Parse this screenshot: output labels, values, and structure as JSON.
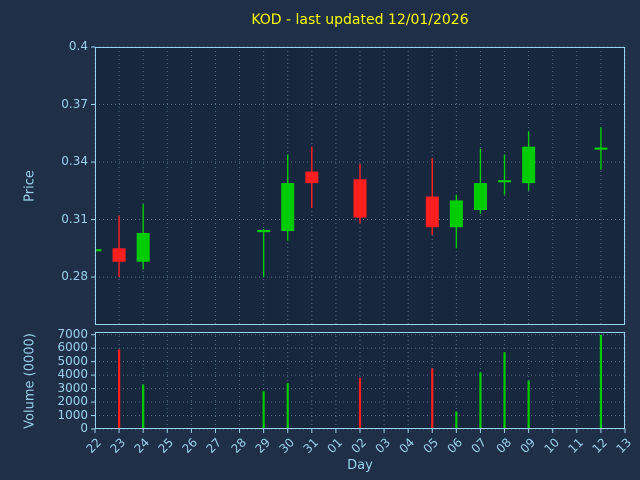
{
  "colors": {
    "figure_bg": "#1e2f47",
    "axes_bg": "#16273e",
    "text": "#9bd1ec",
    "title": "#ffff00",
    "grid": "#54708c",
    "spine": "#9bd1ec",
    "up": "#00cc00",
    "down": "#ff1f1f"
  },
  "chart_data": {
    "type": "candlestick",
    "title": "KOD - last updated 12/01/2026",
    "symbol": "KOD",
    "updated_date": "12/01/2026",
    "xlabel": "Day",
    "grid": "dotted",
    "x_ticklabels": [
      "22",
      "23",
      "24",
      "25",
      "26",
      "27",
      "28",
      "29",
      "30",
      "31",
      "01",
      "02",
      "03",
      "04",
      "05",
      "06",
      "07",
      "08",
      "09",
      "10",
      "11",
      "12",
      "13"
    ],
    "price": {
      "ylabel": "Price",
      "yticks": [
        "0.4",
        "0.37",
        "0.34",
        "0.31",
        "0.28"
      ],
      "ylim": [
        0.255,
        0.4
      ]
    },
    "volume": {
      "ylabel": "Volume (0000)",
      "yticks": [
        "7000",
        "6000",
        "5000",
        "4000",
        "3000",
        "2000",
        "1000",
        "0"
      ],
      "ylim": [
        0,
        7200
      ]
    },
    "candles": [
      {
        "day": "22",
        "open": 0.294,
        "high": 0.294,
        "low": 0.294,
        "close": 0.294,
        "volume": 0
      },
      {
        "day": "23",
        "open": 0.295,
        "high": 0.312,
        "low": 0.28,
        "close": 0.288,
        "volume": 5900
      },
      {
        "day": "24",
        "open": 0.288,
        "high": 0.318,
        "low": 0.284,
        "close": 0.303,
        "volume": 3300
      },
      {
        "day": "29",
        "open": 0.304,
        "high": 0.305,
        "low": 0.28,
        "close": 0.304,
        "volume": 2800
      },
      {
        "day": "30",
        "open": 0.304,
        "high": 0.344,
        "low": 0.299,
        "close": 0.329,
        "volume": 3400
      },
      {
        "day": "31",
        "open": 0.335,
        "high": 0.348,
        "low": 0.316,
        "close": 0.329,
        "volume": 0
      },
      {
        "day": "02",
        "open": 0.331,
        "high": 0.339,
        "low": 0.308,
        "close": 0.311,
        "volume": 3800
      },
      {
        "day": "05",
        "open": 0.322,
        "high": 0.342,
        "low": 0.302,
        "close": 0.306,
        "volume": 4500
      },
      {
        "day": "06",
        "open": 0.306,
        "high": 0.323,
        "low": 0.295,
        "close": 0.32,
        "volume": 1300
      },
      {
        "day": "07",
        "open": 0.315,
        "high": 0.347,
        "low": 0.313,
        "close": 0.329,
        "volume": 4200
      },
      {
        "day": "08",
        "open": 0.33,
        "high": 0.344,
        "low": 0.323,
        "close": 0.33,
        "volume": 5700
      },
      {
        "day": "09",
        "open": 0.329,
        "high": 0.356,
        "low": 0.325,
        "close": 0.348,
        "volume": 3600
      },
      {
        "day": "12",
        "open": 0.347,
        "high": 0.358,
        "low": 0.336,
        "close": 0.347,
        "volume": 7000
      }
    ]
  }
}
